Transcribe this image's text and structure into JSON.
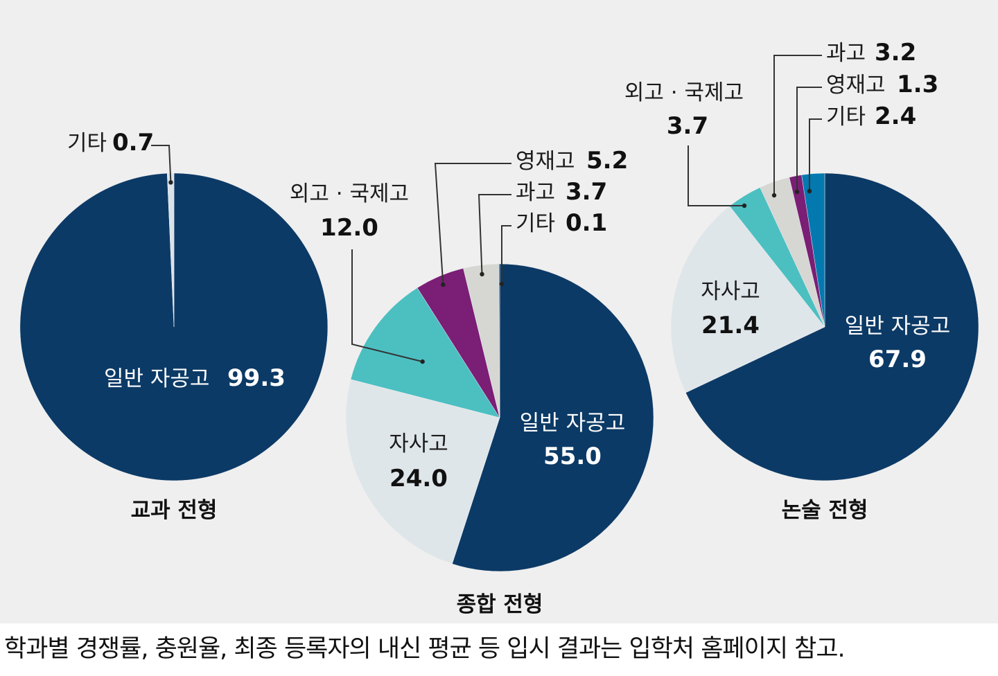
{
  "colors": {
    "general": "#0c3a66",
    "autonomous_private": "#dfe6ea",
    "foreign_intl": "#4cbfc1",
    "gifted": "#7a1e76",
    "science": "#d6d6d3",
    "other": "#0379b0",
    "background": "#efefef"
  },
  "chart_data": [
    {
      "type": "pie",
      "title": "교과 전형",
      "slices": [
        {
          "key": "general",
          "label": "일반 자공고",
          "value": 99.3,
          "display": "99.3",
          "color": "#0c3a66"
        },
        {
          "key": "other",
          "label": "기타",
          "value": 0.7,
          "display": "0.7",
          "color": "#d9e2e8"
        }
      ]
    },
    {
      "type": "pie",
      "title": "종합 전형",
      "slices": [
        {
          "key": "general",
          "label": "일반 자공고",
          "value": 55.0,
          "display": "55.0",
          "color": "#0c3a66"
        },
        {
          "key": "autonomous_private",
          "label": "자사고",
          "value": 24.0,
          "display": "24.0",
          "color": "#dfe6ea"
        },
        {
          "key": "foreign_intl",
          "label": "외고 · 국제고",
          "value": 12.0,
          "display": "12.0",
          "color": "#4cbfc1"
        },
        {
          "key": "gifted",
          "label": "영재고",
          "value": 5.2,
          "display": "5.2",
          "color": "#7a1e76"
        },
        {
          "key": "science",
          "label": "과고",
          "value": 3.7,
          "display": "3.7",
          "color": "#d6d6d3"
        },
        {
          "key": "other",
          "label": "기타",
          "value": 0.1,
          "display": "0.1",
          "color": "#0379b0"
        }
      ]
    },
    {
      "type": "pie",
      "title": "논술 전형",
      "slices": [
        {
          "key": "general",
          "label": "일반 자공고",
          "value": 67.9,
          "display": "67.9",
          "color": "#0c3a66"
        },
        {
          "key": "autonomous_private",
          "label": "자사고",
          "value": 21.4,
          "display": "21.4",
          "color": "#dfe6ea"
        },
        {
          "key": "foreign_intl",
          "label": "외고 · 국제고",
          "value": 3.7,
          "display": "3.7",
          "color": "#4cbfc1"
        },
        {
          "key": "science",
          "label": "과고",
          "value": 3.2,
          "display": "3.2",
          "color": "#d6d6d3"
        },
        {
          "key": "gifted",
          "label": "영재고",
          "value": 1.3,
          "display": "1.3",
          "color": "#7a1e76"
        },
        {
          "key": "other",
          "label": "기타",
          "value": 2.4,
          "display": "2.4",
          "color": "#0379b0"
        }
      ]
    }
  ],
  "footnote": "학과별 경쟁률, 충원율, 최종 등록자의 내신 평균 등 입시 결과는 입학처 홈페이지 참고."
}
